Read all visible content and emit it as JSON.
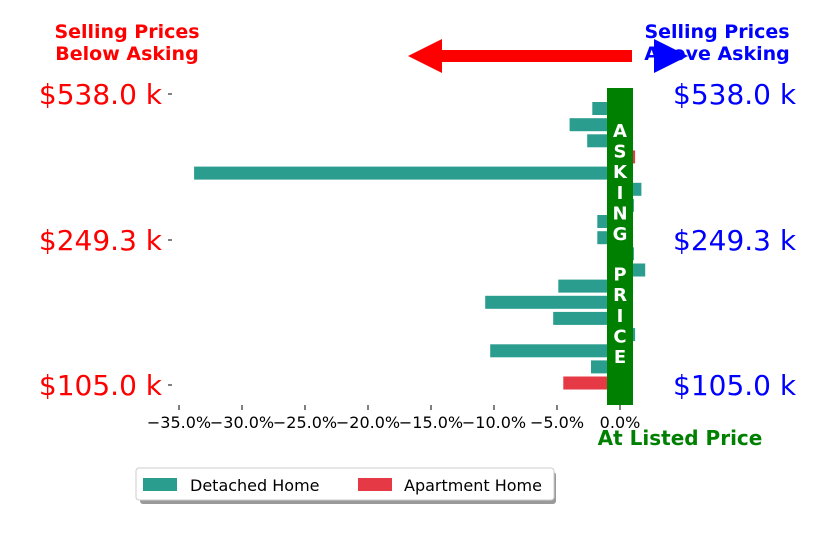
{
  "header": {
    "left_title": [
      "Selling Prices",
      "Below Asking"
    ],
    "right_title": [
      "Selling Prices",
      "Above Asking"
    ]
  },
  "price_labels": [
    "$538.0 k",
    "$249.3 k",
    "$105.0 k"
  ],
  "asking_price_label": "ASKING PRICE",
  "at_listed_label": "At Listed Price",
  "legend": {
    "items": [
      {
        "label": "Detached Home",
        "color": "#2a9d8f"
      },
      {
        "label": "Apartment Home",
        "color": "#e63946"
      }
    ]
  },
  "colors": {
    "detached": "#2a9d8f",
    "apartment": "#e63946",
    "asking_bar": "#008000",
    "arrow": "#ff0000",
    "arrow_right": "#0000ff"
  },
  "chart_data": {
    "type": "bar",
    "orientation": "horizontal",
    "xlim": [
      -37,
      1.5
    ],
    "xticks": [
      "−35.0%",
      "−30.0%",
      "−25.0%",
      "−20.0%",
      "−15.0%",
      "−10.0%",
      "−5.0%",
      "0.0%"
    ],
    "xtick_values": [
      -35,
      -30,
      -25,
      -20,
      -15,
      -10,
      -5,
      0
    ],
    "y_tick_labels": [
      "$538.0 k",
      "$249.3 k",
      "$105.0 k"
    ],
    "series": [
      {
        "name": "Detached Home",
        "values": [
          -2.2,
          -4.0,
          -2.6,
          null,
          -33.8,
          1.7,
          1.1,
          -1.8,
          -1.8,
          1.1,
          2.0,
          -4.9,
          -10.7,
          -5.3,
          1.2,
          -10.3,
          -2.3,
          null
        ]
      },
      {
        "name": "Apartment Home",
        "values": [
          null,
          null,
          null,
          1.2,
          null,
          null,
          null,
          null,
          null,
          null,
          null,
          null,
          null,
          null,
          null,
          null,
          null,
          -4.5
        ]
      }
    ],
    "grid": false,
    "legend_position": "bottom-left"
  }
}
